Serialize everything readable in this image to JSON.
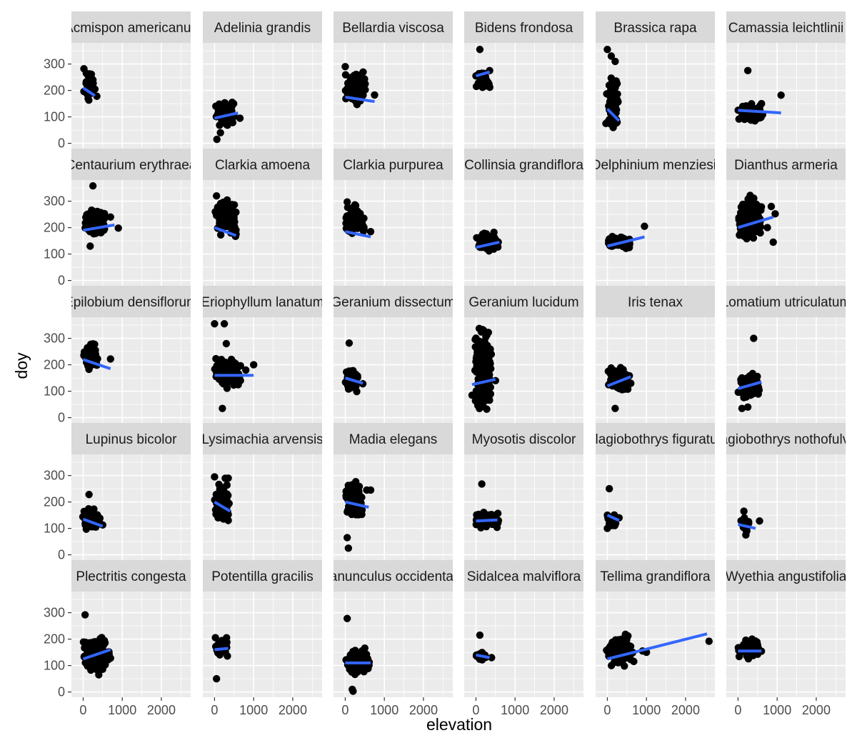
{
  "chart_data": {
    "type": "scatter",
    "xlabel": "elevation",
    "ylabel": "doy",
    "xlim": [
      -300,
      2750
    ],
    "ylim": [
      -20,
      380
    ],
    "x_ticks": [
      0,
      1000,
      2000
    ],
    "y_ticks": [
      0,
      100,
      200,
      300
    ],
    "grid": true,
    "facet_grid": {
      "rows": 5,
      "cols": 6
    },
    "colors": {
      "panel_bg": "#ebebeb",
      "strip_bg": "#d9d9d9",
      "grid_major": "#ffffff",
      "points": "#000000",
      "trend_line": "#3366ff"
    },
    "facets": [
      {
        "label": "Acmispon americanus",
        "fit": [
          [
            0,
            210
          ],
          [
            300,
            180
          ]
        ],
        "cluster": {
          "x": [
            -20,
            350
          ],
          "y": [
            150,
            285
          ],
          "n": 40
        },
        "points": [
          [
            20,
            282
          ],
          [
            80,
            265
          ],
          [
            250,
            240
          ],
          [
            300,
            205
          ],
          [
            350,
            178
          ]
        ]
      },
      {
        "label": "Adelinia grandis",
        "fit": [
          [
            0,
            95
          ],
          [
            600,
            115
          ]
        ],
        "cluster": {
          "x": [
            0,
            550
          ],
          "y": [
            50,
            165
          ],
          "n": 60
        },
        "points": [
          [
            60,
            15
          ],
          [
            150,
            40
          ],
          [
            450,
            155
          ],
          [
            650,
            95
          ]
        ]
      },
      {
        "label": "Bellardia viscosa",
        "fit": [
          [
            0,
            175
          ],
          [
            750,
            158
          ]
        ],
        "cluster": {
          "x": [
            -20,
            550
          ],
          "y": [
            135,
            290
          ],
          "n": 90
        },
        "points": [
          [
            0,
            290
          ],
          [
            400,
            185
          ],
          [
            750,
            183
          ]
        ]
      },
      {
        "label": "Bidens frondosa",
        "fit": [
          [
            0,
            255
          ],
          [
            350,
            270
          ]
        ],
        "cluster": {
          "x": [
            0,
            400
          ],
          "y": [
            180,
            290
          ],
          "n": 30
        },
        "points": [
          [
            100,
            355
          ],
          [
            0,
            255
          ],
          [
            350,
            275
          ]
        ]
      },
      {
        "label": "Brassica rapa",
        "fit": [
          [
            0,
            130
          ],
          [
            300,
            85
          ]
        ],
        "cluster": {
          "x": [
            -60,
            300
          ],
          "y": [
            5,
            350
          ],
          "n": 60
        },
        "points": [
          [
            0,
            355
          ],
          [
            100,
            330
          ],
          [
            200,
            310
          ],
          [
            150,
            60
          ],
          [
            250,
            80
          ]
        ]
      },
      {
        "label": "Camassia leichtlinii",
        "fit": [
          [
            0,
            125
          ],
          [
            1100,
            115
          ]
        ],
        "cluster": {
          "x": [
            -20,
            650
          ],
          "y": [
            75,
            160
          ],
          "n": 80
        },
        "points": [
          [
            250,
            275
          ],
          [
            1100,
            182
          ],
          [
            600,
            150
          ]
        ]
      },
      {
        "label": "Centaurium erythraea",
        "fit": [
          [
            0,
            190
          ],
          [
            800,
            210
          ]
        ],
        "cluster": {
          "x": [
            -20,
            600
          ],
          "y": [
            150,
            290
          ],
          "n": 90
        },
        "points": [
          [
            250,
            358
          ],
          [
            180,
            130
          ],
          [
            450,
            250
          ],
          [
            700,
            240
          ],
          [
            900,
            198
          ]
        ]
      },
      {
        "label": "Clarkia amoena",
        "fit": [
          [
            0,
            200
          ],
          [
            550,
            170
          ]
        ],
        "cluster": {
          "x": [
            -20,
            600
          ],
          "y": [
            150,
            320
          ],
          "n": 90
        },
        "points": [
          [
            50,
            320
          ],
          [
            550,
            175
          ]
        ]
      },
      {
        "label": "Clarkia purpurea",
        "fit": [
          [
            0,
            185
          ],
          [
            650,
            165
          ]
        ],
        "cluster": {
          "x": [
            -20,
            500
          ],
          "y": [
            150,
            300
          ],
          "n": 60
        },
        "points": [
          [
            50,
            297
          ],
          [
            650,
            185
          ]
        ]
      },
      {
        "label": "Collinsia grandiflora",
        "fit": [
          [
            0,
            125
          ],
          [
            600,
            145
          ]
        ],
        "cluster": {
          "x": [
            -20,
            600
          ],
          "y": [
            100,
            195
          ],
          "n": 90
        },
        "points": []
      },
      {
        "label": "Delphinium menziesii",
        "fit": [
          [
            0,
            130
          ],
          [
            950,
            165
          ]
        ],
        "cluster": {
          "x": [
            -20,
            600
          ],
          "y": [
            115,
            170
          ],
          "n": 70
        },
        "points": [
          [
            950,
            205
          ]
        ]
      },
      {
        "label": "Dianthus armeria",
        "fit": [
          [
            0,
            200
          ],
          [
            900,
            240
          ]
        ],
        "cluster": {
          "x": [
            -20,
            650
          ],
          "y": [
            120,
            345
          ],
          "n": 110
        },
        "points": [
          [
            750,
            200
          ],
          [
            850,
            280
          ],
          [
            900,
            145
          ],
          [
            950,
            252
          ]
        ]
      },
      {
        "label": "Epilobium densiflorum",
        "fit": [
          [
            0,
            220
          ],
          [
            700,
            185
          ]
        ],
        "cluster": {
          "x": [
            -20,
            400
          ],
          "y": [
            160,
            300
          ],
          "n": 60
        },
        "points": [
          [
            700,
            222
          ]
        ]
      },
      {
        "label": "Eriophyllum lanatum",
        "fit": [
          [
            0,
            160
          ],
          [
            1000,
            160
          ]
        ],
        "cluster": {
          "x": [
            -20,
            700
          ],
          "y": [
            100,
            245
          ],
          "n": 120
        },
        "points": [
          [
            0,
            355
          ],
          [
            250,
            355
          ],
          [
            300,
            280
          ],
          [
            200,
            35
          ],
          [
            1000,
            200
          ],
          [
            800,
            180
          ]
        ]
      },
      {
        "label": "Geranium dissectum",
        "fit": [
          [
            0,
            150
          ],
          [
            450,
            130
          ]
        ],
        "cluster": {
          "x": [
            -20,
            350
          ],
          "y": [
            95,
            195
          ],
          "n": 60
        },
        "points": [
          [
            100,
            282
          ],
          [
            450,
            128
          ]
        ]
      },
      {
        "label": "Geranium lucidum",
        "fit": [
          [
            -100,
            125
          ],
          [
            500,
            145
          ]
        ],
        "cluster": {
          "x": [
            -30,
            400
          ],
          "y": [
            0,
            365
          ],
          "n": 220
        },
        "points": [
          [
            -100,
            85
          ],
          [
            500,
            140
          ]
        ]
      },
      {
        "label": "Iris tenax",
        "fit": [
          [
            0,
            120
          ],
          [
            600,
            155
          ]
        ],
        "cluster": {
          "x": [
            -20,
            600
          ],
          "y": [
            90,
            200
          ],
          "n": 110
        },
        "points": [
          [
            200,
            35
          ],
          [
            600,
            130
          ]
        ]
      },
      {
        "label": "Lomatium utriculatum",
        "fit": [
          [
            0,
            110
          ],
          [
            600,
            135
          ]
        ],
        "cluster": {
          "x": [
            -20,
            550
          ],
          "y": [
            50,
            180
          ],
          "n": 110
        },
        "points": [
          [
            400,
            300
          ],
          [
            100,
            35
          ],
          [
            250,
            40
          ]
        ]
      },
      {
        "label": "Lupinus bicolor",
        "fit": [
          [
            0,
            135
          ],
          [
            500,
            108
          ]
        ],
        "cluster": {
          "x": [
            -20,
            450
          ],
          "y": [
            90,
            180
          ],
          "n": 70
        },
        "points": [
          [
            150,
            228
          ],
          [
            500,
            113
          ]
        ]
      },
      {
        "label": "Lysimachia arvensis",
        "fit": [
          [
            0,
            200
          ],
          [
            400,
            165
          ]
        ],
        "cluster": {
          "x": [
            -20,
            400
          ],
          "y": [
            100,
            295
          ],
          "n": 80
        },
        "points": [
          [
            0,
            295
          ],
          [
            350,
            290
          ],
          [
            350,
            130
          ]
        ]
      },
      {
        "label": "Madia elegans",
        "fit": [
          [
            0,
            200
          ],
          [
            600,
            180
          ]
        ],
        "cluster": {
          "x": [
            -20,
            450
          ],
          "y": [
            120,
            300
          ],
          "n": 110
        },
        "points": [
          [
            50,
            65
          ],
          [
            80,
            25
          ],
          [
            550,
            245
          ],
          [
            650,
            245
          ]
        ]
      },
      {
        "label": "Myosotis discolor",
        "fit": [
          [
            0,
            128
          ],
          [
            550,
            132
          ]
        ],
        "cluster": {
          "x": [
            -20,
            600
          ],
          "y": [
            95,
            170
          ],
          "n": 100
        },
        "points": [
          [
            150,
            268
          ]
        ]
      },
      {
        "label": "Plagiobothrys figuratus",
        "fit": [
          [
            0,
            150
          ],
          [
            300,
            130
          ]
        ],
        "cluster": {
          "x": [
            -20,
            250
          ],
          "y": [
            100,
            165
          ],
          "n": 30
        },
        "points": [
          [
            50,
            250
          ],
          [
            0,
            100
          ],
          [
            300,
            140
          ]
        ]
      },
      {
        "label": "Plagiobothrys nothofulvus",
        "fit": [
          [
            0,
            115
          ],
          [
            450,
            100
          ]
        ],
        "cluster": {
          "x": [
            -20,
            350
          ],
          "y": [
            80,
            150
          ],
          "n": 30
        },
        "points": [
          [
            150,
            165
          ],
          [
            200,
            75
          ],
          [
            550,
            128
          ]
        ]
      },
      {
        "label": "Plectritis congesta",
        "fit": [
          [
            0,
            125
          ],
          [
            700,
            160
          ]
        ],
        "cluster": {
          "x": [
            -20,
            700
          ],
          "y": [
            70,
            215
          ],
          "n": 140
        },
        "points": [
          [
            50,
            292
          ],
          [
            700,
            128
          ],
          [
            400,
            65
          ]
        ]
      },
      {
        "label": "Potentilla gracilis",
        "fit": [
          [
            0,
            160
          ],
          [
            350,
            165
          ]
        ],
        "cluster": {
          "x": [
            -20,
            400
          ],
          "y": [
            125,
            225
          ],
          "n": 30
        },
        "points": [
          [
            50,
            50
          ]
        ]
      },
      {
        "label": "Ranunculus occidentalis",
        "fit": [
          [
            0,
            110
          ],
          [
            650,
            110
          ]
        ],
        "cluster": {
          "x": [
            -20,
            650
          ],
          "y": [
            50,
            175
          ],
          "n": 80
        },
        "points": [
          [
            50,
            278
          ],
          [
            200,
            3
          ],
          [
            180,
            10
          ]
        ]
      },
      {
        "label": "Sidalcea malviflora",
        "fit": [
          [
            0,
            140
          ],
          [
            350,
            130
          ]
        ],
        "cluster": {
          "x": [
            -20,
            300
          ],
          "y": [
            115,
            160
          ],
          "n": 25
        },
        "points": [
          [
            100,
            215
          ],
          [
            400,
            130
          ]
        ]
      },
      {
        "label": "Tellima grandiflora",
        "fit": [
          [
            0,
            125
          ],
          [
            2550,
            220
          ]
        ],
        "cluster": {
          "x": [
            -30,
            700
          ],
          "y": [
            85,
            225
          ],
          "n": 180
        },
        "points": [
          [
            900,
            155
          ],
          [
            1000,
            150
          ],
          [
            2600,
            192
          ]
        ]
      },
      {
        "label": "Wyethia angustifolia",
        "fit": [
          [
            0,
            155
          ],
          [
            600,
            155
          ]
        ],
        "cluster": {
          "x": [
            -20,
            650
          ],
          "y": [
            115,
            210
          ],
          "n": 70
        },
        "points": []
      }
    ]
  }
}
